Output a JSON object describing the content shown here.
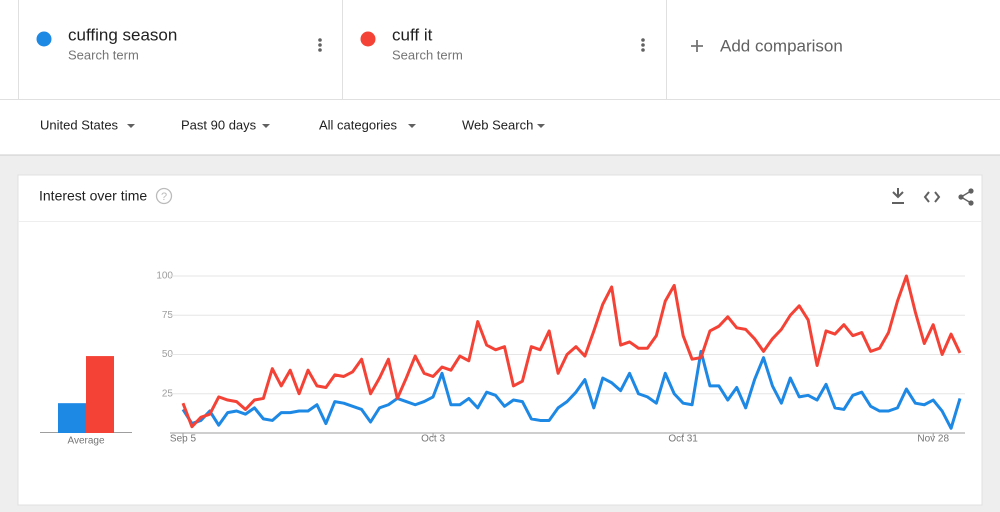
{
  "search_terms": [
    {
      "subtitle": "Search term"
    },
    {
      "subtitle": "Search term"
    }
  ],
  "add_comparison": "Add comparison",
  "filters": [
    "United States",
    "Past 90 days",
    "All categories",
    "Web Search"
  ],
  "card_title": "Interest over time",
  "chart_data": {
    "type": "line",
    "categories": [
      "Sep 5",
      null,
      null,
      null,
      null,
      null,
      null,
      null,
      null,
      null,
      null,
      null,
      null,
      null,
      null,
      null,
      null,
      null,
      null,
      null,
      null,
      null,
      null,
      null,
      null,
      null,
      null,
      null,
      "Oct 3",
      null,
      null,
      null,
      null,
      null,
      null,
      null,
      null,
      null,
      null,
      null,
      null,
      null,
      null,
      null,
      null,
      null,
      null,
      null,
      null,
      null,
      null,
      null,
      null,
      null,
      null,
      null,
      "Oct 31",
      null,
      null,
      null,
      null,
      null,
      null,
      null,
      null,
      null,
      null,
      null,
      null,
      null,
      null,
      null,
      null,
      null,
      null,
      null,
      null,
      null,
      null,
      null,
      null,
      null,
      null,
      null,
      "Nov 28",
      null,
      null,
      null
    ],
    "series": [
      {
        "name": "cuffing season",
        "color": "#1e88e5",
        "values": [
          15,
          6,
          8,
          14,
          5,
          13,
          14,
          12,
          16,
          9,
          8,
          13,
          13,
          14,
          14,
          18,
          6,
          20,
          19,
          17,
          15,
          7,
          16,
          18,
          22,
          20,
          18,
          20,
          23,
          38,
          18,
          18,
          22,
          16,
          26,
          24,
          17,
          21,
          20,
          9,
          8,
          8,
          16,
          20,
          26,
          34,
          16,
          35,
          32,
          27,
          38,
          25,
          23,
          19,
          38,
          25,
          19,
          18,
          52,
          30,
          30,
          21,
          29,
          16,
          34,
          48,
          30,
          19,
          35,
          23,
          24,
          21,
          31,
          16,
          15,
          24,
          26,
          17,
          14,
          14,
          16,
          28,
          19,
          18,
          21,
          14,
          3,
          22
        ]
      },
      {
        "name": "cuff it",
        "color": "#f44336",
        "values": [
          19,
          4,
          10,
          12,
          23,
          21,
          20,
          15,
          21,
          22,
          41,
          30,
          40,
          25,
          40,
          30,
          29,
          37,
          36,
          39,
          47,
          25,
          35,
          47,
          22,
          35,
          49,
          38,
          36,
          42,
          40,
          49,
          46,
          71,
          56,
          53,
          55,
          30,
          33,
          55,
          53,
          65,
          38,
          50,
          55,
          49,
          65,
          82,
          93,
          56,
          58,
          54,
          54,
          62,
          84,
          94,
          62,
          47,
          48,
          65,
          68,
          74,
          67,
          66,
          60,
          52,
          60,
          66,
          75,
          81,
          72,
          43,
          65,
          63,
          69,
          62,
          64,
          52,
          54,
          64,
          84,
          100,
          77,
          57,
          69,
          50,
          63,
          51
        ]
      }
    ],
    "ylim": [
      0,
      100
    ],
    "yticks": [
      25,
      50,
      75,
      100
    ],
    "grid": true,
    "averages": {
      "label": "Average",
      "values": [
        19,
        49
      ]
    }
  }
}
